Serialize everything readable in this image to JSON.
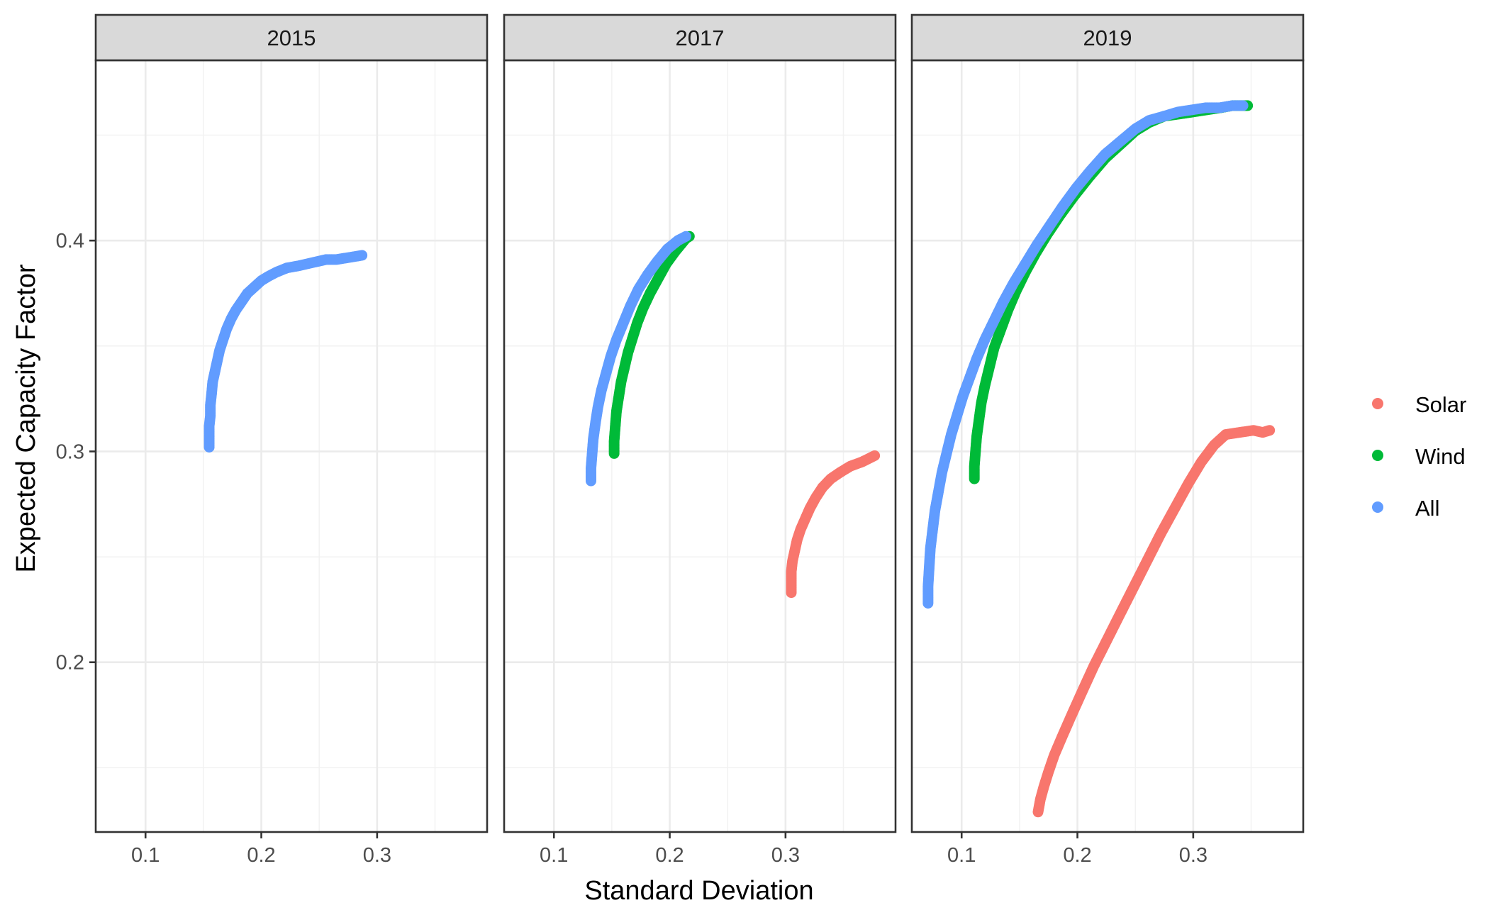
{
  "chart_data": {
    "type": "scatter",
    "facet_labels": [
      "2015",
      "2017",
      "2019"
    ],
    "xlabel": "Standard Deviation",
    "ylabel": "Expected Capacity Factor",
    "xlim": [
      0.057,
      0.395
    ],
    "ylim": [
      0.1195,
      0.4855
    ],
    "x_ticks": [
      0.1,
      0.2,
      0.3
    ],
    "y_ticks": [
      0.2,
      0.3,
      0.4
    ],
    "grid": true,
    "legend_position": "right",
    "legend": [
      {
        "name": "Solar",
        "color": "#F8766D"
      },
      {
        "name": "Wind",
        "color": "#00BA38"
      },
      {
        "name": "All",
        "color": "#619CFF"
      }
    ],
    "facets": [
      {
        "label": "2015",
        "series": [
          {
            "name": "All",
            "color": "#619CFF",
            "points": [
              [
                0.155,
                0.302
              ],
              [
                0.155,
                0.307
              ],
              [
                0.155,
                0.312
              ],
              [
                0.156,
                0.317
              ],
              [
                0.156,
                0.322
              ],
              [
                0.157,
                0.327
              ],
              [
                0.158,
                0.333
              ],
              [
                0.16,
                0.338
              ],
              [
                0.162,
                0.343
              ],
              [
                0.164,
                0.348
              ],
              [
                0.167,
                0.353
              ],
              [
                0.17,
                0.358
              ],
              [
                0.174,
                0.363
              ],
              [
                0.178,
                0.367
              ],
              [
                0.183,
                0.371
              ],
              [
                0.188,
                0.375
              ],
              [
                0.194,
                0.378
              ],
              [
                0.2,
                0.381
              ],
              [
                0.206,
                0.383
              ],
              [
                0.213,
                0.385
              ],
              [
                0.222,
                0.387
              ],
              [
                0.232,
                0.388
              ],
              [
                0.24,
                0.389
              ],
              [
                0.248,
                0.39
              ],
              [
                0.256,
                0.391
              ],
              [
                0.265,
                0.391
              ],
              [
                0.276,
                0.392
              ],
              [
                0.287,
                0.393
              ]
            ]
          }
        ]
      },
      {
        "label": "2017",
        "series": [
          {
            "name": "Solar",
            "color": "#F8766D",
            "points": [
              [
                0.305,
                0.233
              ],
              [
                0.305,
                0.238
              ],
              [
                0.305,
                0.243
              ],
              [
                0.306,
                0.248
              ],
              [
                0.308,
                0.253
              ],
              [
                0.31,
                0.258
              ],
              [
                0.313,
                0.263
              ],
              [
                0.317,
                0.268
              ],
              [
                0.321,
                0.273
              ],
              [
                0.326,
                0.278
              ],
              [
                0.332,
                0.283
              ],
              [
                0.339,
                0.287
              ],
              [
                0.347,
                0.29
              ],
              [
                0.356,
                0.293
              ],
              [
                0.366,
                0.295
              ],
              [
                0.377,
                0.298
              ]
            ]
          },
          {
            "name": "Wind",
            "color": "#00BA38",
            "points": [
              [
                0.152,
                0.299
              ],
              [
                0.152,
                0.305
              ],
              [
                0.153,
                0.312
              ],
              [
                0.154,
                0.319
              ],
              [
                0.156,
                0.326
              ],
              [
                0.158,
                0.333
              ],
              [
                0.161,
                0.34
              ],
              [
                0.164,
                0.347
              ],
              [
                0.168,
                0.354
              ],
              [
                0.172,
                0.361
              ],
              [
                0.177,
                0.368
              ],
              [
                0.183,
                0.375
              ],
              [
                0.19,
                0.382
              ],
              [
                0.197,
                0.389
              ],
              [
                0.205,
                0.395
              ],
              [
                0.214,
                0.401
              ],
              [
                0.217,
                0.402
              ]
            ]
          },
          {
            "name": "All",
            "color": "#619CFF",
            "points": [
              [
                0.132,
                0.286
              ],
              [
                0.132,
                0.292
              ],
              [
                0.133,
                0.299
              ],
              [
                0.134,
                0.306
              ],
              [
                0.136,
                0.314
              ],
              [
                0.138,
                0.321
              ],
              [
                0.141,
                0.329
              ],
              [
                0.145,
                0.337
              ],
              [
                0.149,
                0.345
              ],
              [
                0.154,
                0.353
              ],
              [
                0.16,
                0.361
              ],
              [
                0.166,
                0.369
              ],
              [
                0.173,
                0.377
              ],
              [
                0.181,
                0.384
              ],
              [
                0.189,
                0.39
              ],
              [
                0.198,
                0.396
              ],
              [
                0.207,
                0.4
              ],
              [
                0.214,
                0.402
              ]
            ]
          }
        ]
      },
      {
        "label": "2019",
        "series": [
          {
            "name": "Solar",
            "color": "#F8766D",
            "points": [
              [
                0.166,
                0.129
              ],
              [
                0.168,
                0.135
              ],
              [
                0.171,
                0.141
              ],
              [
                0.175,
                0.148
              ],
              [
                0.18,
                0.156
              ],
              [
                0.187,
                0.165
              ],
              [
                0.195,
                0.175
              ],
              [
                0.204,
                0.186
              ],
              [
                0.214,
                0.198
              ],
              [
                0.225,
                0.21
              ],
              [
                0.236,
                0.222
              ],
              [
                0.248,
                0.235
              ],
              [
                0.26,
                0.248
              ],
              [
                0.272,
                0.261
              ],
              [
                0.284,
                0.273
              ],
              [
                0.296,
                0.285
              ],
              [
                0.307,
                0.295
              ],
              [
                0.318,
                0.303
              ],
              [
                0.328,
                0.308
              ],
              [
                0.34,
                0.309
              ],
              [
                0.352,
                0.31
              ],
              [
                0.36,
                0.309
              ],
              [
                0.366,
                0.31
              ]
            ]
          },
          {
            "name": "Wind",
            "color": "#00BA38",
            "points": [
              [
                0.111,
                0.287
              ],
              [
                0.111,
                0.293
              ],
              [
                0.112,
                0.3
              ],
              [
                0.113,
                0.307
              ],
              [
                0.115,
                0.315
              ],
              [
                0.117,
                0.323
              ],
              [
                0.12,
                0.331
              ],
              [
                0.124,
                0.34
              ],
              [
                0.128,
                0.349
              ],
              [
                0.134,
                0.358
              ],
              [
                0.14,
                0.367
              ],
              [
                0.147,
                0.376
              ],
              [
                0.155,
                0.385
              ],
              [
                0.164,
                0.394
              ],
              [
                0.174,
                0.403
              ],
              [
                0.185,
                0.412
              ],
              [
                0.197,
                0.421
              ],
              [
                0.21,
                0.43
              ],
              [
                0.224,
                0.439
              ],
              [
                0.238,
                0.446
              ],
              [
                0.25,
                0.452
              ],
              [
                0.262,
                0.456
              ],
              [
                0.275,
                0.459
              ],
              [
                0.288,
                0.46
              ],
              [
                0.3,
                0.461
              ],
              [
                0.312,
                0.462
              ],
              [
                0.324,
                0.463
              ],
              [
                0.334,
                0.464
              ],
              [
                0.342,
                0.464
              ],
              [
                0.347,
                0.464
              ]
            ]
          },
          {
            "name": "All",
            "color": "#619CFF",
            "points": [
              [
                0.071,
                0.228
              ],
              [
                0.071,
                0.236
              ],
              [
                0.072,
                0.245
              ],
              [
                0.073,
                0.254
              ],
              [
                0.075,
                0.263
              ],
              [
                0.077,
                0.272
              ],
              [
                0.08,
                0.281
              ],
              [
                0.083,
                0.29
              ],
              [
                0.087,
                0.299
              ],
              [
                0.091,
                0.308
              ],
              [
                0.096,
                0.317
              ],
              [
                0.101,
                0.326
              ],
              [
                0.107,
                0.335
              ],
              [
                0.113,
                0.344
              ],
              [
                0.12,
                0.353
              ],
              [
                0.128,
                0.362
              ],
              [
                0.136,
                0.371
              ],
              [
                0.145,
                0.38
              ],
              [
                0.155,
                0.389
              ],
              [
                0.165,
                0.398
              ],
              [
                0.176,
                0.407
              ],
              [
                0.187,
                0.416
              ],
              [
                0.199,
                0.425
              ],
              [
                0.211,
                0.433
              ],
              [
                0.224,
                0.441
              ],
              [
                0.237,
                0.447
              ],
              [
                0.25,
                0.453
              ],
              [
                0.262,
                0.457
              ],
              [
                0.275,
                0.459
              ],
              [
                0.287,
                0.461
              ],
              [
                0.299,
                0.462
              ],
              [
                0.311,
                0.463
              ],
              [
                0.323,
                0.463
              ],
              [
                0.334,
                0.464
              ],
              [
                0.343,
                0.464
              ]
            ]
          }
        ]
      }
    ]
  }
}
